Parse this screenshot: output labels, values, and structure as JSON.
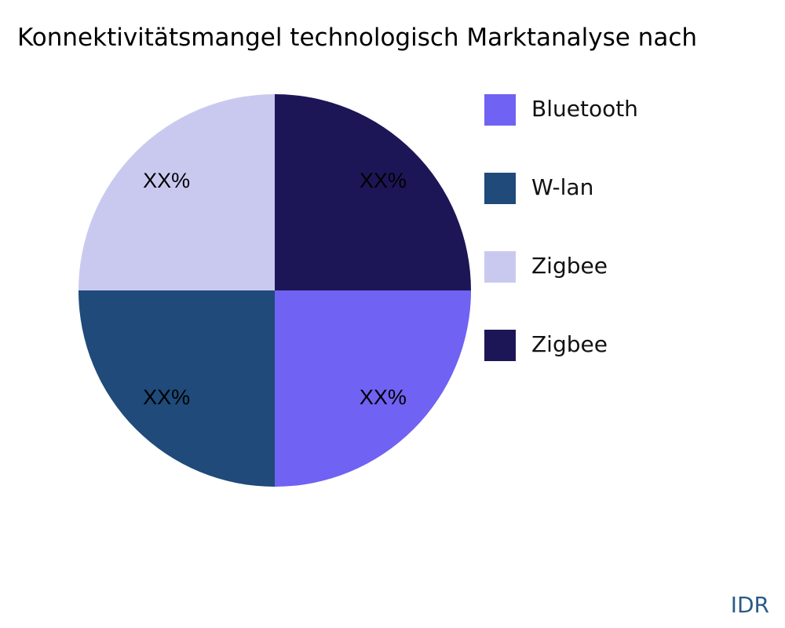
{
  "chart_data": {
    "type": "pie",
    "title": "Konnektivitätsmangel technologisch Marktanalyse nach",
    "categories": [
      "Bluetooth",
      "W-lan",
      "Zigbee",
      "Zigbee"
    ],
    "values": [
      25,
      25,
      25,
      25
    ],
    "value_labels": [
      "XX%",
      "XX%",
      "XX%",
      "XX%"
    ],
    "colors": [
      "#7062f2",
      "#1f4a7a",
      "#c9c9f0",
      "#1c1656"
    ]
  },
  "footer": "IDR"
}
